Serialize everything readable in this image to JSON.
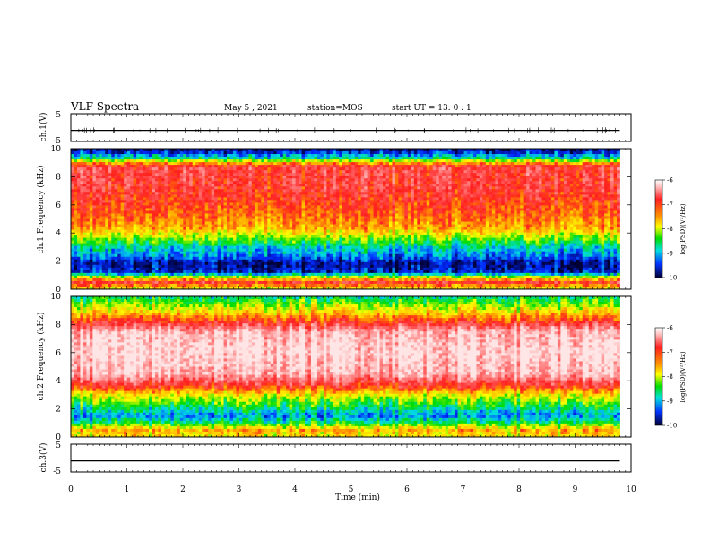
{
  "header": {
    "title": "VLF Spectra",
    "date": "May 5 , 2021",
    "station": "station=MOS",
    "start_ut": "start UT = 13: 0 : 1"
  },
  "chart_data": [
    {
      "type": "line",
      "panel": "ch1-waveform",
      "ylabel": "ch.1(V)",
      "yticks": [
        "5",
        "-5"
      ],
      "ylim": [
        -5,
        5
      ],
      "trace_level": -1,
      "x": [
        0,
        10
      ],
      "xlim": [
        0,
        10
      ]
    },
    {
      "type": "heatmap",
      "panel": "ch1-spectrogram",
      "ylabel": "ch.1 Frequency (kHz)",
      "yticks": [
        "10",
        "8",
        "6",
        "4",
        "2",
        "0"
      ],
      "ylim": [
        0,
        10
      ],
      "xlim": [
        0,
        10
      ],
      "data_end_min": 9.8,
      "colorbar": {
        "label": "log(PSD)(V²/Hz)",
        "ticks": [
          "-6",
          "-7",
          "-8",
          "-9",
          "-10"
        ],
        "range": [
          -10,
          -6
        ]
      },
      "profile": [
        {
          "f": 0.0,
          "v": -8.0
        },
        {
          "f": 0.5,
          "v": -6.9
        },
        {
          "f": 0.9,
          "v": -8.3
        },
        {
          "f": 1.2,
          "v": -9.6
        },
        {
          "f": 1.9,
          "v": -9.8
        },
        {
          "f": 2.3,
          "v": -9.3
        },
        {
          "f": 3.0,
          "v": -8.9
        },
        {
          "f": 3.8,
          "v": -8.1
        },
        {
          "f": 4.3,
          "v": -7.6
        },
        {
          "f": 5.5,
          "v": -7.2
        },
        {
          "f": 7.0,
          "v": -6.9
        },
        {
          "f": 8.7,
          "v": -6.8
        },
        {
          "f": 9.0,
          "v": -7.6
        },
        {
          "f": 9.3,
          "v": -8.8
        },
        {
          "f": 9.7,
          "v": -9.5
        },
        {
          "f": 10.0,
          "v": -9.9
        }
      ]
    },
    {
      "type": "heatmap",
      "panel": "ch2-spectrogram",
      "ylabel": "ch.2 Frequency (kHz)",
      "yticks": [
        "10",
        "8",
        "6",
        "4",
        "2",
        "0"
      ],
      "ylim": [
        0,
        10
      ],
      "xlim": [
        0,
        10
      ],
      "data_end_min": 9.8,
      "colorbar": {
        "label": "log(PSD)(V²/Hz)",
        "ticks": [
          "-6",
          "-7",
          "-8",
          "-9",
          "-10"
        ],
        "range": [
          -10,
          -6
        ]
      },
      "profile": [
        {
          "f": 0.0,
          "v": -7.9
        },
        {
          "f": 0.5,
          "v": -7.6
        },
        {
          "f": 1.0,
          "v": -8.6
        },
        {
          "f": 1.5,
          "v": -9.2
        },
        {
          "f": 2.2,
          "v": -8.6
        },
        {
          "f": 3.0,
          "v": -7.9
        },
        {
          "f": 3.6,
          "v": -7.0
        },
        {
          "f": 4.5,
          "v": -6.2
        },
        {
          "f": 6.0,
          "v": -6.0
        },
        {
          "f": 7.5,
          "v": -6.2
        },
        {
          "f": 8.2,
          "v": -7.0
        },
        {
          "f": 9.0,
          "v": -7.9
        },
        {
          "f": 9.6,
          "v": -8.4
        },
        {
          "f": 10.0,
          "v": -8.8
        }
      ]
    },
    {
      "type": "line",
      "panel": "ch3-waveform",
      "ylabel": "ch.3(V)",
      "yticks": [
        "5",
        "-5"
      ],
      "ylim": [
        -5,
        5
      ],
      "trace_level": -1,
      "x": [
        0,
        10
      ],
      "xlim": [
        0,
        10
      ],
      "xlabel": "Time (min)",
      "xticks": [
        "0",
        "1",
        "2",
        "3",
        "4",
        "5",
        "6",
        "7",
        "8",
        "9",
        "10"
      ]
    }
  ]
}
